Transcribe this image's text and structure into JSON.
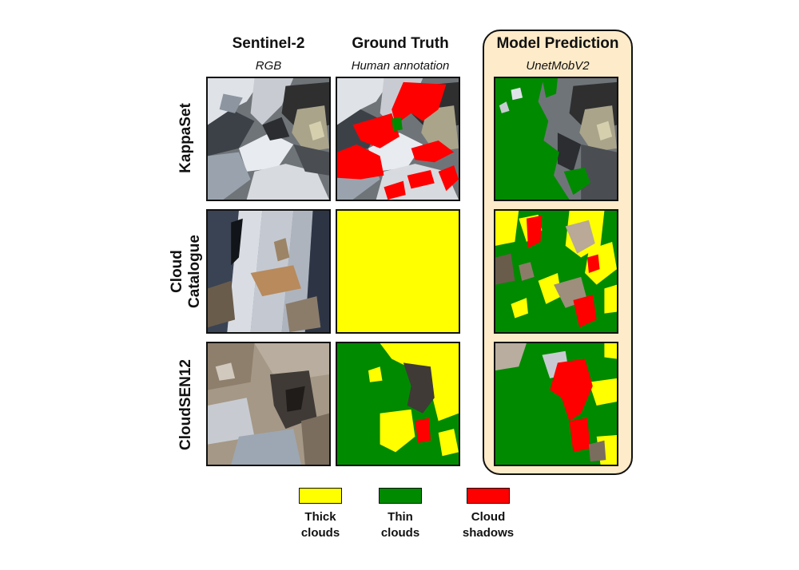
{
  "columns": [
    {
      "title": "Sentinel-2",
      "subtitle": "RGB"
    },
    {
      "title": "Ground Truth",
      "subtitle": "Human annotation"
    },
    {
      "title": "Model Prediction",
      "subtitle": "UnetMobV2"
    }
  ],
  "rows": [
    {
      "label": "KappaSet"
    },
    {
      "label": "Cloud\nCatalogue"
    },
    {
      "label": "CloudSEN12"
    }
  ],
  "legend": [
    {
      "label": "Thick\nclouds",
      "color": "#ffff00"
    },
    {
      "label": "Thin\nclouds",
      "color": "#008a00"
    },
    {
      "label": "Cloud\nshadows",
      "color": "#ff0000"
    }
  ],
  "colors": {
    "thick": "#ffff00",
    "thin": "#008a00",
    "shadow": "#ff0000",
    "highlight_bg": "#fdebc9"
  }
}
